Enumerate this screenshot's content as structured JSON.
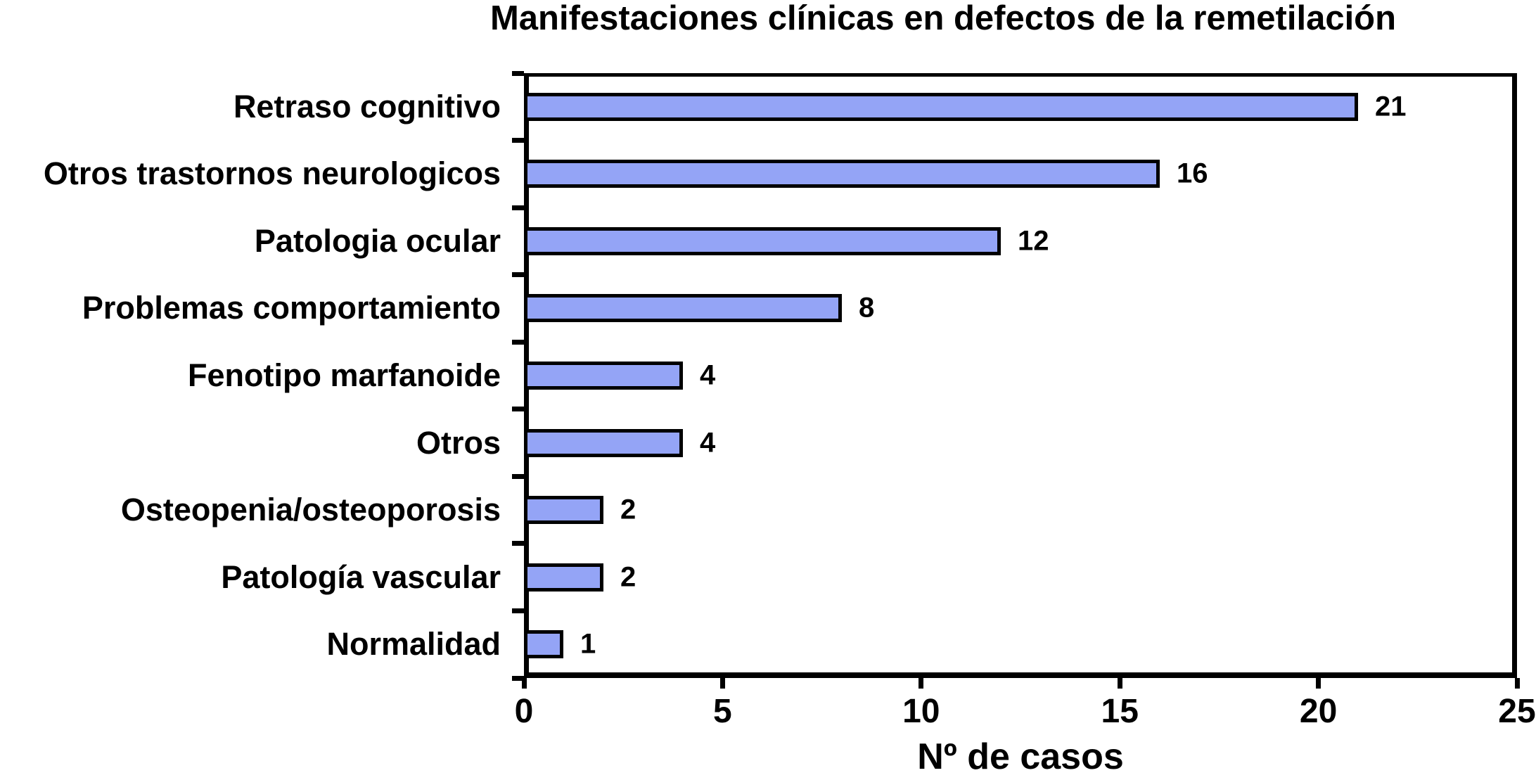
{
  "chart_data": {
    "type": "bar",
    "orientation": "horizontal",
    "title": "Manifestaciones clínicas en defectos de la remetilación",
    "xlabel": "Nº de casos",
    "ylabel": "",
    "categories": [
      "Retraso cognitivo",
      "Otros trastornos neurologicos",
      "Patologia ocular",
      "Problemas comportamiento",
      "Fenotipo marfanoide",
      "Otros",
      "Osteopenia/osteoporosis",
      "Patología vascular",
      "Normalidad"
    ],
    "values": [
      21,
      16,
      12,
      8,
      4,
      4,
      2,
      2,
      1
    ],
    "value_labels": [
      "21",
      "16",
      "12",
      "8",
      "4",
      "4",
      "2",
      "2",
      "1"
    ],
    "xlim": [
      0,
      25
    ],
    "x_ticks": [
      0,
      5,
      10,
      15,
      20,
      25
    ],
    "x_tick_labels": [
      "0",
      "5",
      "10",
      "15",
      "20",
      "25"
    ],
    "grid": false,
    "legend": false,
    "colors": {
      "bar_fill": "#94A4F6",
      "bar_border": "#000000",
      "axis": "#000000",
      "text": "#000000",
      "background": "#FFFFFF"
    }
  }
}
